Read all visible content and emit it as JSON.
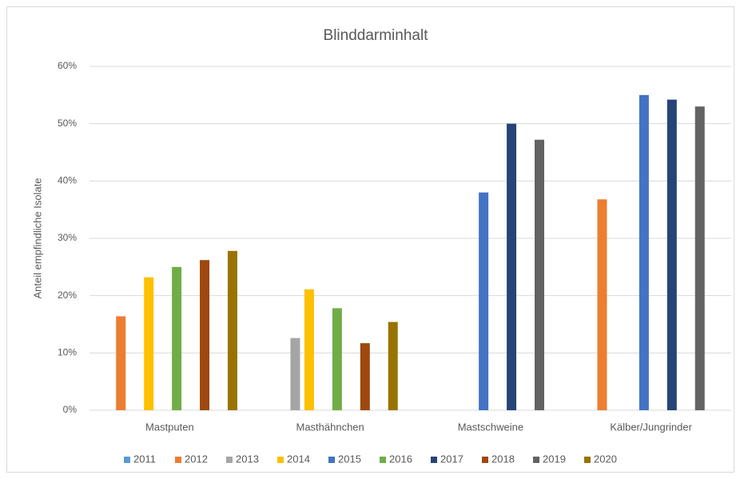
{
  "chart_data": {
    "type": "bar",
    "title": "Blinddarminhalt",
    "y_label": "Anteil empfindliche Isolate",
    "categories": [
      "Mastputen",
      "Masthähnchen",
      "Mastschweine",
      "Kälber/Jungrinder"
    ],
    "series": [
      {
        "name": "2011",
        "color": "#5b9bd5",
        "values": [
          null,
          null,
          null,
          null
        ]
      },
      {
        "name": "2012",
        "color": "#ed7d31",
        "values": [
          16.4,
          null,
          null,
          36.8
        ]
      },
      {
        "name": "2013",
        "color": "#a5a5a5",
        "values": [
          null,
          12.6,
          null,
          null
        ]
      },
      {
        "name": "2014",
        "color": "#ffc000",
        "values": [
          23.2,
          21.1,
          null,
          null
        ]
      },
      {
        "name": "2015",
        "color": "#4472c4",
        "values": [
          null,
          null,
          38,
          55
        ]
      },
      {
        "name": "2016",
        "color": "#70ad47",
        "values": [
          25,
          17.8,
          null,
          null
        ]
      },
      {
        "name": "2017",
        "color": "#264478",
        "values": [
          null,
          null,
          50,
          54.2
        ]
      },
      {
        "name": "2018",
        "color": "#9e480e",
        "values": [
          26.2,
          11.7,
          null,
          null
        ]
      },
      {
        "name": "2019",
        "color": "#636363",
        "values": [
          null,
          null,
          47.2,
          53
        ]
      },
      {
        "name": "2020",
        "color": "#997300",
        "values": [
          27.8,
          15.4,
          null,
          null
        ]
      }
    ],
    "ylim": [
      0,
      60
    ],
    "yticks": [
      {
        "value": 0,
        "label": "0%"
      },
      {
        "value": 10,
        "label": "10%"
      },
      {
        "value": 20,
        "label": "20%"
      },
      {
        "value": 30,
        "label": "30%"
      },
      {
        "value": 40,
        "label": "40%"
      },
      {
        "value": 50,
        "label": "50%"
      },
      {
        "value": 60,
        "label": "60%"
      }
    ],
    "grid": true,
    "legend": "bottom"
  }
}
